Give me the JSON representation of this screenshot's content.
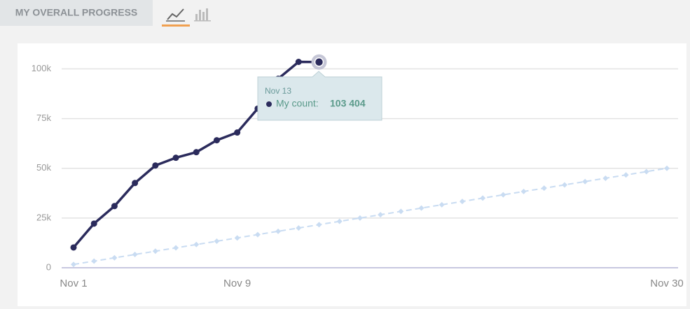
{
  "header": {
    "title": "MY OVERALL PROGRESS"
  },
  "chart_data": {
    "type": "line",
    "categories": [
      "Nov 1",
      null,
      null,
      null,
      null,
      null,
      null,
      null,
      "Nov 9",
      null,
      null,
      null,
      null,
      null,
      null,
      null,
      null,
      null,
      null,
      null,
      null,
      null,
      null,
      null,
      null,
      null,
      null,
      null,
      null,
      "Nov 30"
    ],
    "series": [
      {
        "color": "#2b2b5c",
        "values": [
          10200,
          22200,
          31000,
          42600,
          51400,
          55300,
          58100,
          64100,
          68000,
          80000,
          95000,
          103500,
          103404,
          null,
          null,
          null,
          null,
          null,
          null,
          null,
          null,
          null,
          null,
          null,
          null,
          null,
          null,
          null,
          null,
          null
        ]
      },
      {
        "color": "#c9dcf2",
        "values": [
          1667,
          3333,
          5000,
          6667,
          8333,
          10000,
          11667,
          13333,
          15000,
          16667,
          18333,
          20000,
          21667,
          23333,
          25000,
          26667,
          28333,
          30000,
          31667,
          33333,
          35000,
          36667,
          38333,
          40000,
          41667,
          43333,
          45000,
          46667,
          48333,
          50000
        ]
      }
    ],
    "ylim": [
      0,
      110000
    ],
    "yticks": [
      0,
      {
        "value": 25000,
        "label": "25k"
      },
      {
        "value": 50000,
        "label": "50k"
      },
      {
        "value": 75000,
        "label": "75k"
      },
      {
        "value": 100000,
        "label": "100k"
      }
    ],
    "grid": true,
    "tooltip": {
      "date": "Nov 13",
      "label": "My count:",
      "value": "103 404"
    }
  }
}
